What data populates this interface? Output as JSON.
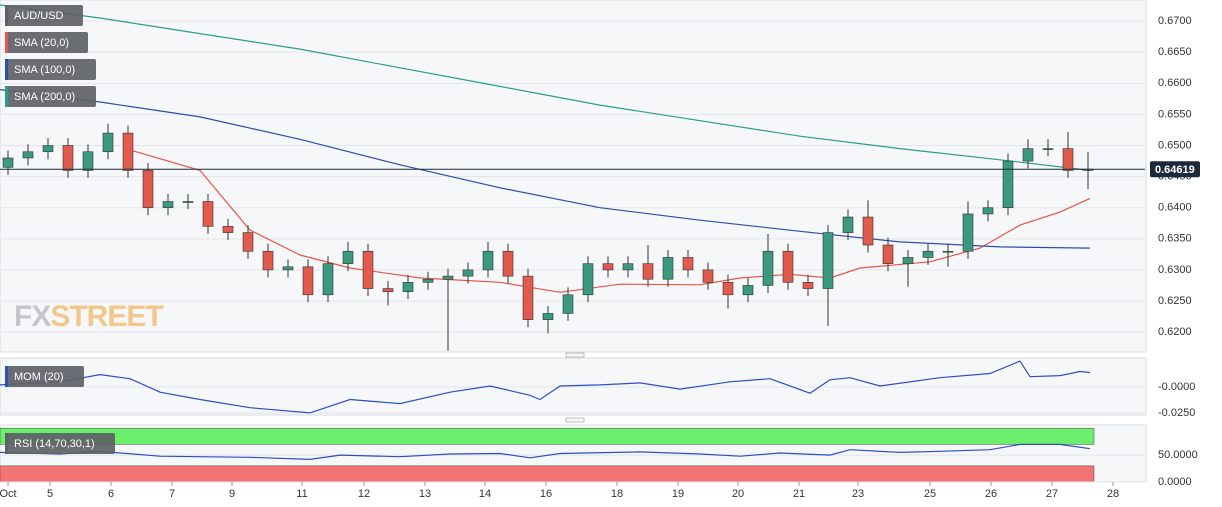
{
  "chart_data": [
    {
      "type": "candlestick",
      "name": "AUD/USD",
      "up_color": "#3b9a7d",
      "down_color": "#e05a4e",
      "x": [
        0,
        1,
        2,
        3,
        4,
        5,
        6,
        7,
        8,
        9,
        10,
        11,
        12,
        13,
        14,
        15,
        16,
        17,
        18,
        19,
        20,
        21,
        22,
        23,
        24,
        25,
        26,
        27,
        28,
        29,
        30,
        31,
        32,
        33,
        34,
        35,
        36,
        37,
        38,
        39,
        40,
        41,
        42,
        43,
        44,
        45,
        46,
        47,
        48,
        49,
        50,
        51,
        52,
        53,
        54
      ],
      "open": [
        0.6465,
        0.648,
        0.649,
        0.65,
        0.646,
        0.649,
        0.652,
        0.646,
        0.64,
        0.641,
        0.641,
        0.637,
        0.636,
        0.633,
        0.63,
        0.6305,
        0.626,
        0.631,
        0.633,
        0.627,
        0.6265,
        0.628,
        0.6285,
        0.629,
        0.63,
        0.633,
        0.629,
        0.622,
        0.623,
        0.626,
        0.631,
        0.63,
        0.631,
        0.6285,
        0.632,
        0.63,
        0.628,
        0.626,
        0.6275,
        0.633,
        0.628,
        0.627,
        0.636,
        0.6385,
        0.634,
        0.631,
        0.632,
        0.633,
        0.633,
        0.639,
        0.64,
        0.6475,
        0.6495,
        0.6495,
        0.646
      ],
      "high": [
        0.6492,
        0.6502,
        0.6512,
        0.6512,
        0.6502,
        0.6535,
        0.6532,
        0.6472,
        0.6422,
        0.6422,
        0.6422,
        0.6382,
        0.6372,
        0.6342,
        0.6317,
        0.6317,
        0.6322,
        0.6345,
        0.6342,
        0.6282,
        0.6292,
        0.6297,
        0.6302,
        0.6312,
        0.6345,
        0.6342,
        0.6302,
        0.6242,
        0.6272,
        0.6322,
        0.6322,
        0.6322,
        0.634,
        0.6332,
        0.6332,
        0.6312,
        0.6292,
        0.6287,
        0.6358,
        0.6342,
        0.6292,
        0.6372,
        0.6397,
        0.6412,
        0.6352,
        0.6332,
        0.6342,
        0.6342,
        0.641,
        0.6412,
        0.6487,
        0.651,
        0.651,
        0.6522,
        0.649
      ],
      "low": [
        0.6453,
        0.6468,
        0.6478,
        0.6448,
        0.6448,
        0.6478,
        0.6448,
        0.6388,
        0.6388,
        0.6398,
        0.6358,
        0.6348,
        0.6318,
        0.6288,
        0.6288,
        0.6248,
        0.6248,
        0.6298,
        0.6258,
        0.6243,
        0.6253,
        0.6268,
        0.617,
        0.6278,
        0.6288,
        0.6278,
        0.6208,
        0.6198,
        0.6218,
        0.6248,
        0.6288,
        0.6288,
        0.6273,
        0.6273,
        0.6288,
        0.6268,
        0.6238,
        0.6248,
        0.6263,
        0.6268,
        0.6258,
        0.621,
        0.6348,
        0.6328,
        0.6298,
        0.6273,
        0.6308,
        0.6305,
        0.6318,
        0.6378,
        0.6388,
        0.6463,
        0.6483,
        0.6448,
        0.643
      ],
      "close": [
        0.648,
        0.649,
        0.65,
        0.646,
        0.649,
        0.652,
        0.646,
        0.64,
        0.641,
        0.641,
        0.637,
        0.636,
        0.633,
        0.63,
        0.6305,
        0.626,
        0.631,
        0.633,
        0.627,
        0.6265,
        0.628,
        0.6285,
        0.629,
        0.63,
        0.633,
        0.629,
        0.622,
        0.623,
        0.626,
        0.631,
        0.63,
        0.631,
        0.6285,
        0.632,
        0.63,
        0.628,
        0.626,
        0.6275,
        0.633,
        0.628,
        0.627,
        0.636,
        0.6385,
        0.634,
        0.631,
        0.632,
        0.633,
        0.633,
        0.639,
        0.64,
        0.6475,
        0.6495,
        0.6495,
        0.646,
        0.6462
      ],
      "lines": [
        {
          "name": "SMA (20,0)",
          "color": "#e8554a",
          "x": [
            6.1,
            9.6,
            12.1,
            14.6,
            17.1,
            20.6,
            24.6,
            27.6,
            30.6,
            34.6,
            36.6,
            39.1,
            41.1,
            42.6,
            46.1,
            48.6,
            50.6,
            52.6,
            54.1
          ],
          "values": [
            0.6493,
            0.646,
            0.6364,
            0.6324,
            0.6303,
            0.6287,
            0.628,
            0.6264,
            0.6277,
            0.6276,
            0.6287,
            0.6293,
            0.6287,
            0.6303,
            0.6313,
            0.6335,
            0.6372,
            0.6393,
            0.6415
          ]
        },
        {
          "name": "SMA (100,0)",
          "color": "#2b4ea8",
          "x": [
            -0.4,
            4.6,
            9.6,
            14.6,
            19.6,
            24.6,
            29.6,
            34.6,
            39.6,
            44.6,
            49.6,
            54.1
          ],
          "values": [
            0.659,
            0.657,
            0.6546,
            0.651,
            0.6469,
            0.6432,
            0.64,
            0.638,
            0.6362,
            0.6345,
            0.6337,
            0.6335
          ]
        },
        {
          "name": "SMA (200,0)",
          "color": "#2a9d8a",
          "x": [
            -0.4,
            4.6,
            9.6,
            14.6,
            19.6,
            24.6,
            29.6,
            34.6,
            39.6,
            44.6,
            49.6,
            54.1
          ],
          "values": [
            0.6726,
            0.6705,
            0.668,
            0.6655,
            0.6625,
            0.6595,
            0.6565,
            0.654,
            0.6515,
            0.6495,
            0.6477,
            0.646
          ]
        }
      ],
      "last_price": 0.64619,
      "watermark": [
        "FX",
        "STREET"
      ],
      "xlim": [
        -0.4,
        56.85
      ],
      "ylim": [
        0.6168,
        0.6734
      ],
      "grid": true,
      "yticks": [
        {
          "value": 0.67,
          "label": "0.6700"
        },
        {
          "value": 0.665,
          "label": "0.6650"
        },
        {
          "value": 0.66,
          "label": "0.6600"
        },
        {
          "value": 0.655,
          "label": "0.6550"
        },
        {
          "value": 0.65,
          "label": "0.6500"
        },
        {
          "value": 0.645,
          "label": "0.6450"
        },
        {
          "value": 0.64,
          "label": "0.6400"
        },
        {
          "value": 0.635,
          "label": "0.6350"
        },
        {
          "value": 0.63,
          "label": "0.6300"
        },
        {
          "value": 0.625,
          "label": "0.6250"
        },
        {
          "value": 0.62,
          "label": "0.6200"
        }
      ]
    },
    {
      "type": "line",
      "name": "MOM (20)",
      "color": "#2b4ec8",
      "x": [
        -0.4,
        2.6,
        4.6,
        6.1,
        7.6,
        9.6,
        12.1,
        15.1,
        17.1,
        19.6,
        22.1,
        24.1,
        26.1,
        26.6,
        27.6,
        29.6,
        31.6,
        33.6,
        36.1,
        38.1,
        40.1,
        41.1,
        42.1,
        43.6,
        46.6,
        49.1,
        50.6,
        51.1,
        52.6,
        53.6,
        54.1
      ],
      "values": [
        0.002,
        0.005,
        0.012,
        0.008,
        -0.005,
        -0.012,
        -0.02,
        -0.025,
        -0.012,
        -0.016,
        -0.005,
        0.001,
        -0.008,
        -0.012,
        0.001,
        0.002,
        0.004,
        -0.002,
        0.005,
        0.008,
        -0.006,
        0.007,
        0.009,
        0.001,
        0.009,
        0.013,
        0.025,
        0.01,
        0.011,
        0.015,
        0.014
      ],
      "xlim": [
        -0.4,
        56.85
      ],
      "ylim": [
        -0.027,
        0.028
      ],
      "grid": true,
      "yticks": [
        {
          "value": 0,
          "label": "-0.0000"
        },
        {
          "value": -0.025,
          "label": "-0.0250"
        }
      ]
    },
    {
      "type": "line",
      "name": "RSI (14,70,30,1)",
      "color": "#2b4ec8",
      "x": [
        -0.4,
        2.6,
        4.6,
        7.6,
        12.1,
        15.1,
        16.6,
        19.6,
        22.1,
        24.6,
        26.1,
        27.6,
        31.6,
        34.6,
        36.6,
        38.6,
        41.1,
        42.1,
        44.6,
        46.6,
        49.1,
        50.6,
        52.6,
        54.1
      ],
      "values": [
        55,
        52,
        57,
        48,
        46,
        42,
        50,
        47,
        52,
        53,
        45,
        53,
        56,
        52,
        48,
        54,
        50,
        60,
        55,
        57,
        60,
        70,
        70,
        62
      ],
      "bands": [
        {
          "from": 70,
          "to": 100,
          "color": "#6cef6c"
        },
        {
          "from": 0,
          "to": 30,
          "color": "#f27474"
        }
      ],
      "xlim": [
        -0.4,
        56.85
      ],
      "ylim": [
        0,
        106
      ],
      "grid": true,
      "yticks": [
        {
          "value": 50,
          "label": "50.0000"
        },
        {
          "value": 0,
          "label": "0.0000"
        }
      ],
      "xticks": [
        {
          "value": 0,
          "label": "Oct"
        },
        {
          "value": 2.1,
          "label": "5"
        },
        {
          "value": 5.15,
          "label": "6"
        },
        {
          "value": 8.2,
          "label": "7"
        },
        {
          "value": 11.2,
          "label": "9"
        },
        {
          "value": 14.7,
          "label": "11"
        },
        {
          "value": 17.8,
          "label": "12"
        },
        {
          "value": 20.85,
          "label": "13"
        },
        {
          "value": 23.85,
          "label": "14"
        },
        {
          "value": 26.9,
          "label": "16"
        },
        {
          "value": 30.45,
          "label": "18"
        },
        {
          "value": 33.5,
          "label": "19"
        },
        {
          "value": 36.5,
          "label": "20"
        },
        {
          "value": 39.55,
          "label": "21"
        },
        {
          "value": 42.5,
          "label": "23"
        },
        {
          "value": 46.1,
          "label": "25"
        },
        {
          "value": 49.15,
          "label": "26"
        },
        {
          "value": 52.2,
          "label": "27"
        },
        {
          "value": 55.25,
          "label": "28"
        }
      ]
    }
  ]
}
